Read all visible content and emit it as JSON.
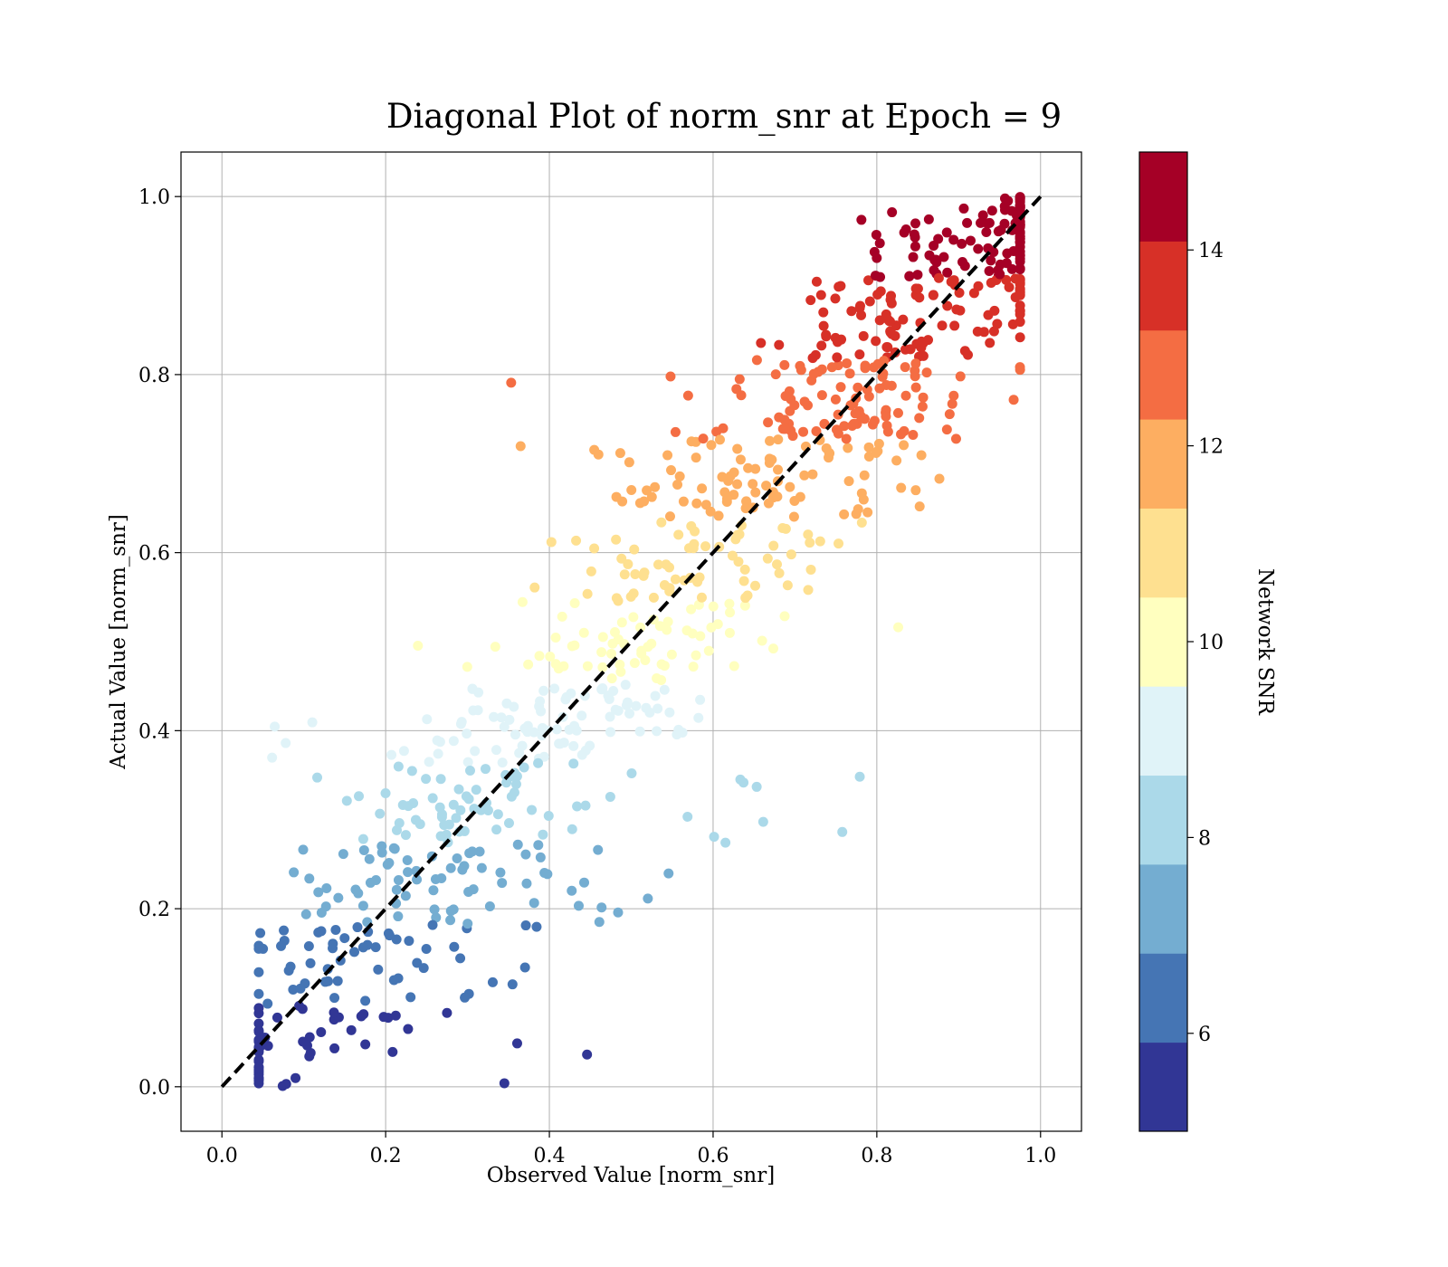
{
  "chart_data": {
    "type": "scatter",
    "title": "Diagonal Plot of norm_snr at Epoch = 9",
    "xlabel": "Observed Value [norm_snr]",
    "ylabel": "Actual Value [norm_snr]",
    "xlim": [
      -0.05,
      1.05
    ],
    "ylim": [
      -0.05,
      1.05
    ],
    "xticks": [
      "0.0",
      "0.2",
      "0.4",
      "0.6",
      "0.8",
      "1.0"
    ],
    "yticks": [
      "0.0",
      "0.2",
      "0.4",
      "0.6",
      "0.8",
      "1.0"
    ],
    "grid": true,
    "reference_line": {
      "x": [
        0,
        1
      ],
      "y": [
        0,
        1
      ],
      "style": "dashed",
      "color": "#000000"
    },
    "colorbar": {
      "label": "Network SNR",
      "range": [
        5,
        15
      ],
      "ticks": [
        "6",
        "8",
        "10",
        "12",
        "14"
      ],
      "tick_values": [
        6,
        8,
        10,
        12,
        14
      ],
      "colors": [
        "#313695",
        "#4575b4",
        "#74add1",
        "#abd9e9",
        "#e0f3f8",
        "#ffffbf",
        "#fee090",
        "#fdae61",
        "#f46d43",
        "#d73027",
        "#a50026"
      ]
    },
    "n_points": 900,
    "point_generation": "approximate reproduction: x = y + noise, snr = 5 + 10*y"
  }
}
